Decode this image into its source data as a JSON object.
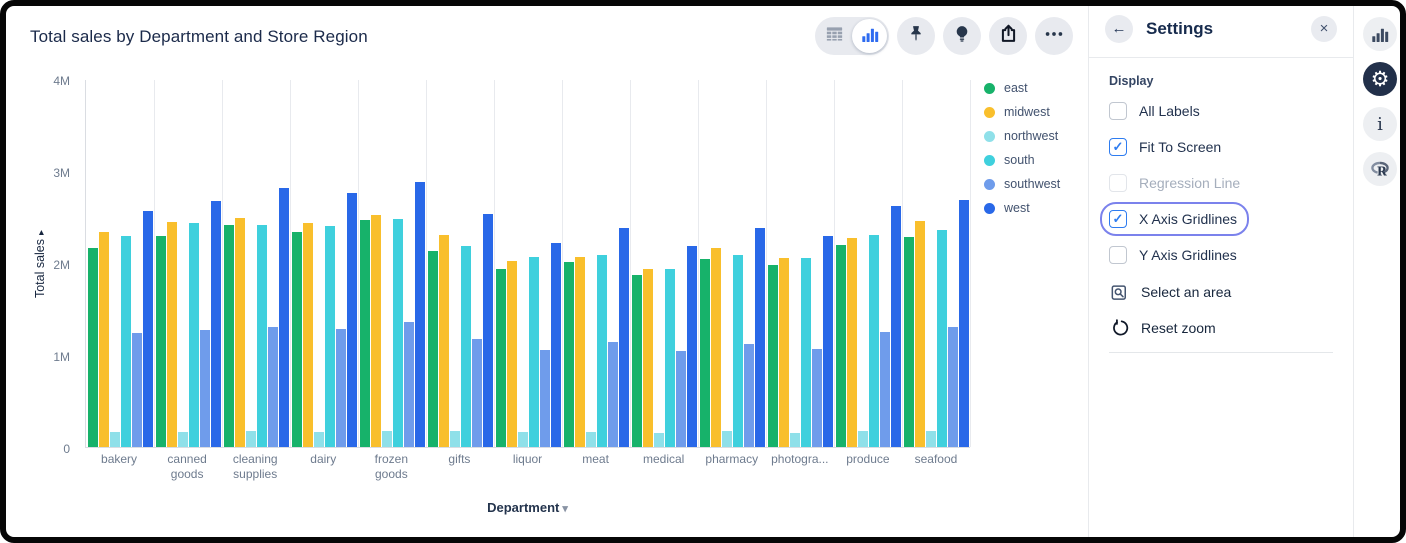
{
  "window_title": "Total sales by Department and Store Region",
  "toolbar": {
    "view_toggle": [
      {
        "icon": "table-icon",
        "active": false
      },
      {
        "icon": "bar-chart-icon",
        "active": true
      }
    ],
    "buttons": [
      {
        "icon": "pin-icon"
      },
      {
        "icon": "lightbulb-icon"
      },
      {
        "icon": "share-icon"
      },
      {
        "icon": "more-icon"
      }
    ]
  },
  "chart_data": {
    "type": "bar",
    "title": "Total sales by Department and Store Region",
    "xlabel": "Department",
    "ylabel": "Total sales",
    "units": "millions",
    "ylim": [
      0,
      4
    ],
    "yticks_bottom_up": [
      "0",
      "1M",
      "2M",
      "3M",
      "4M"
    ],
    "x_gridlines": true,
    "y_gridlines": false,
    "legend_position": "right",
    "categories": [
      "bakery",
      "canned goods",
      "cleaning supplies",
      "dairy",
      "frozen goods",
      "gifts",
      "liquor",
      "meat",
      "medical",
      "pharmacy",
      "photogra...",
      "produce",
      "seafood"
    ],
    "series": [
      {
        "name": "east",
        "color": "#17b26a",
        "values": [
          2.16,
          2.29,
          2.41,
          2.34,
          2.47,
          2.13,
          1.93,
          2.01,
          1.87,
          2.04,
          1.98,
          2.2,
          2.28
        ]
      },
      {
        "name": "midwest",
        "color": "#f9bf2c",
        "values": [
          2.34,
          2.45,
          2.49,
          2.43,
          2.52,
          2.3,
          2.02,
          2.07,
          1.94,
          2.16,
          2.05,
          2.27,
          2.46
        ]
      },
      {
        "name": "northwest",
        "color": "#8fe0e9",
        "values": [
          0.16,
          0.16,
          0.17,
          0.16,
          0.17,
          0.17,
          0.16,
          0.16,
          0.15,
          0.17,
          0.15,
          0.17,
          0.17
        ]
      },
      {
        "name": "south",
        "color": "#3fd0dd",
        "values": [
          2.29,
          2.44,
          2.41,
          2.4,
          2.48,
          2.19,
          2.07,
          2.09,
          1.93,
          2.09,
          2.05,
          2.3,
          2.36
        ]
      },
      {
        "name": "southwest",
        "color": "#6f9ceb",
        "values": [
          1.24,
          1.27,
          1.3,
          1.28,
          1.36,
          1.17,
          1.05,
          1.14,
          1.04,
          1.12,
          1.07,
          1.25,
          1.31
        ]
      },
      {
        "name": "west",
        "color": "#2968e8",
        "values": [
          2.57,
          2.67,
          2.82,
          2.76,
          2.88,
          2.53,
          2.22,
          2.38,
          2.18,
          2.38,
          2.29,
          2.62,
          2.69
        ]
      }
    ]
  },
  "axis_carets": {
    "y": "chevron-right-icon",
    "x": "chevron-down-icon"
  },
  "settings_panel": {
    "back_icon": "back-arrow-icon",
    "title": "Settings",
    "close_icon": "close-icon",
    "section": "Display",
    "checkboxes": [
      {
        "label": "All Labels",
        "checked": false,
        "disabled": false,
        "focused": false
      },
      {
        "label": "Fit To Screen",
        "checked": true,
        "disabled": false,
        "focused": false
      },
      {
        "label": "Regression Line",
        "checked": false,
        "disabled": true,
        "focused": false
      },
      {
        "label": "X Axis Gridlines",
        "checked": true,
        "disabled": false,
        "focused": true
      },
      {
        "label": "Y Axis Gridlines",
        "checked": false,
        "disabled": false,
        "focused": false
      }
    ],
    "actions": [
      {
        "label": "Select an area",
        "icon": "select-area-icon"
      },
      {
        "label": "Reset zoom",
        "icon": "reset-zoom-icon"
      }
    ],
    "focus_ring_color": "#7b82ec",
    "checkbox_checked_color": "#2e7cf0"
  },
  "sidebar": {
    "buttons": [
      {
        "icon": "bar-chart-icon",
        "active": false
      },
      {
        "icon": "gear-icon",
        "active": true
      },
      {
        "icon": "info-icon",
        "active": false
      },
      {
        "icon": "r-logo-icon",
        "active": false
      }
    ],
    "active_color": "#22304a"
  }
}
